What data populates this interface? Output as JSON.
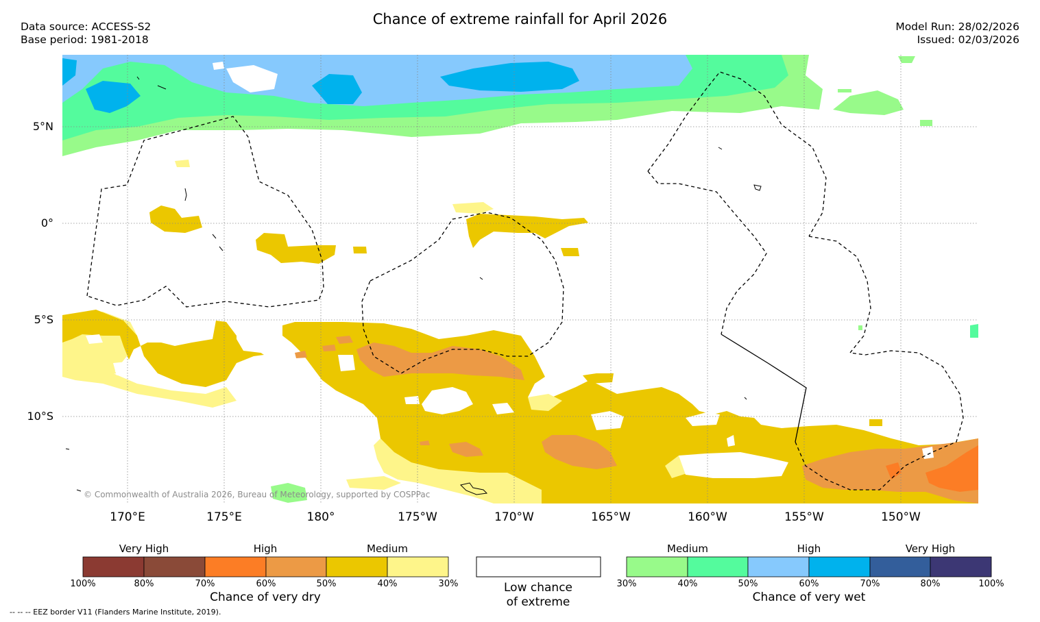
{
  "header": {
    "title": "Chance of extreme rainfall for April 2026",
    "data_source": "Data source: ACCESS-S2",
    "base_period": "Base period: 1981-2018",
    "model_run": "Model Run: 28/02/2026",
    "issued": "Issued: 02/03/2026"
  },
  "map": {
    "lat_labels": [
      "5°N",
      "0°",
      "5°S",
      "10°S"
    ],
    "lon_labels": [
      "170°E",
      "175°E",
      "180°",
      "175°W",
      "170°W",
      "165°W",
      "160°W",
      "155°W",
      "150°W"
    ],
    "copyright": "© Commonwealth of Australia 2026, Bureau of Meteorology, supported by COSPPac"
  },
  "legend": {
    "dry": {
      "tiers": [
        "Very High",
        "High",
        "Medium"
      ],
      "colors": [
        "#8b3a32",
        "#8a4a38",
        "#fc7d25",
        "#ec9a45",
        "#ebc700",
        "#fef58a"
      ],
      "ticks": [
        "100%",
        "80%",
        "70%",
        "60%",
        "50%",
        "40%",
        "30%"
      ],
      "caption": "Chance of very dry"
    },
    "low": {
      "caption_line1": "Low chance",
      "caption_line2": "of extreme"
    },
    "wet": {
      "tiers": [
        "Medium",
        "High",
        "Very High"
      ],
      "colors": [
        "#98fa8a",
        "#54fb9d",
        "#86c9fd",
        "#00b2ed",
        "#335e9b",
        "#3c3774"
      ],
      "ticks": [
        "30%",
        "40%",
        "50%",
        "60%",
        "70%",
        "80%",
        "100%"
      ],
      "caption": "Chance of very wet"
    }
  },
  "footer": {
    "eez_note": "--  --  -- EEZ border V11 (Flanders Marine Institute, 2019)."
  }
}
